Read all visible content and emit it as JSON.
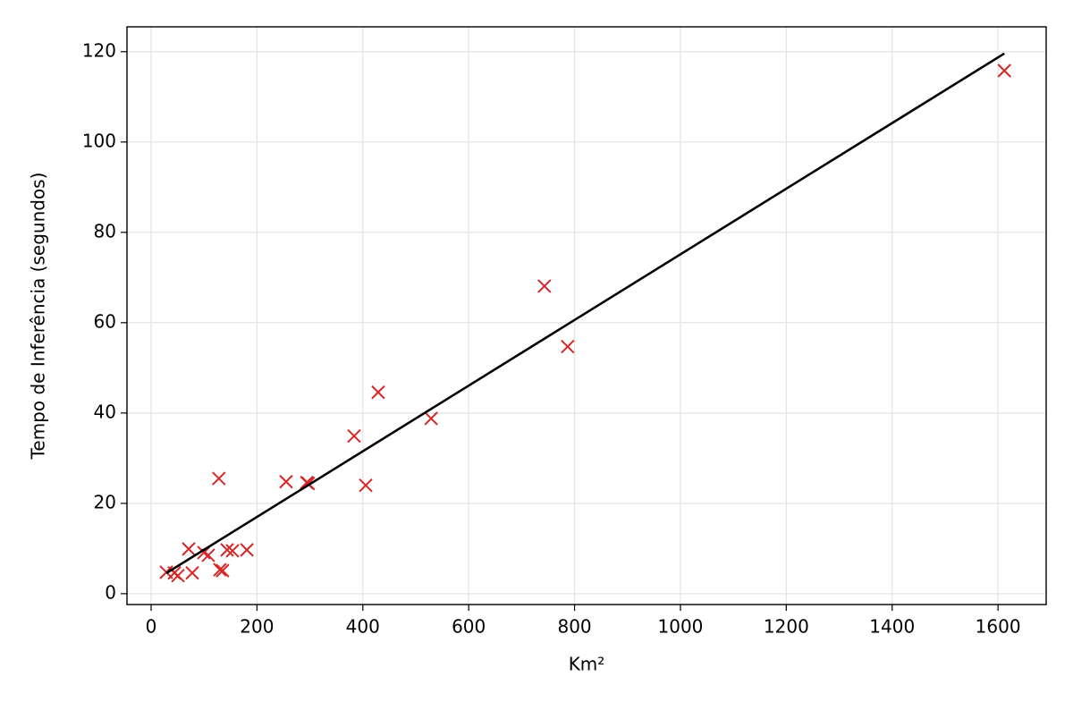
{
  "chart_data": {
    "type": "scatter",
    "xlabel": "Km²",
    "ylabel": "Tempo de Inferência (segundos)",
    "xlim": [
      -45.6,
      1691
    ],
    "ylim": [
      -2.4,
      125.5
    ],
    "xticks": [
      0,
      200,
      400,
      600,
      800,
      1000,
      1200,
      1400,
      1600
    ],
    "yticks": [
      0,
      20,
      40,
      60,
      80,
      100,
      120
    ],
    "grid": true,
    "series": [
      {
        "color": "#d62728",
        "marker": "x",
        "x": [
          28.7,
          44,
          50.7,
          71,
          77.7,
          99.7,
          108,
          128,
          130,
          135,
          143.6,
          153.7,
          181,
          255,
          294,
          297,
          383.5,
          405.5,
          429,
          529,
          743,
          787,
          1612
        ],
        "values": [
          4.75,
          4.6,
          4.0,
          9.9,
          4.6,
          9.1,
          8.5,
          25.5,
          5.3,
          5.1,
          9.7,
          9.5,
          9.7,
          24.8,
          24.6,
          24.4,
          34.9,
          24.0,
          44.6,
          38.8,
          68.1,
          54.7,
          115.8
        ]
      },
      {
        "color": "#000000",
        "marker": "line",
        "x": [
          28.7,
          1612
        ],
        "values": [
          4.55,
          119.6
        ]
      }
    ]
  }
}
